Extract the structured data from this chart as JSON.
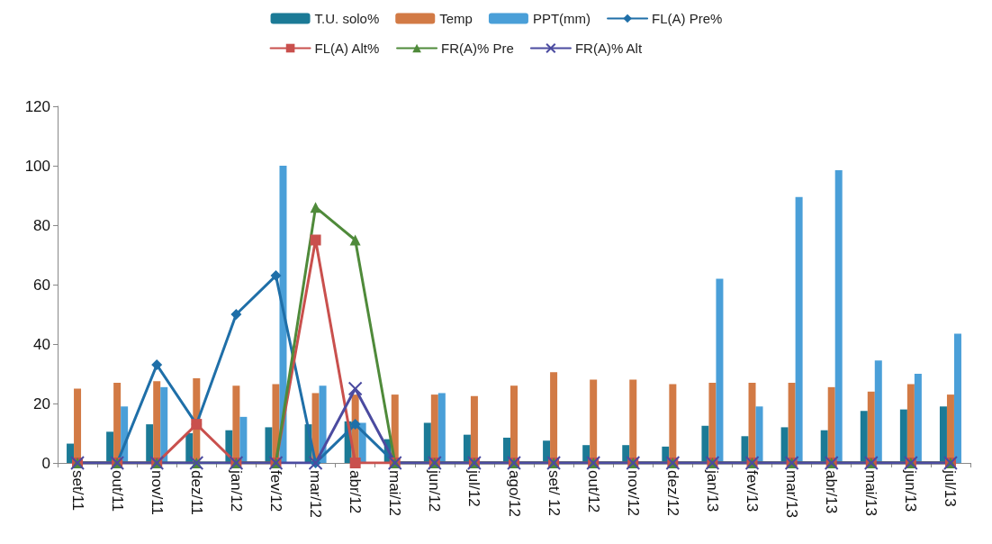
{
  "chart_data": {
    "type": "bar",
    "categories": [
      "set/11",
      "out/11",
      "nov/11",
      "dez/11",
      "jan/12",
      "fev/12",
      "mar/12",
      "abr/12",
      "mai/12",
      "jun/12",
      "jul/12",
      "ago/12",
      "set/ 12",
      "out/12",
      "nov/12",
      "dez/12",
      "jan/13",
      "fev/13",
      "mar/13",
      "abr/13",
      "mai/13",
      "jun/13",
      "jul/13"
    ],
    "ylim": [
      0,
      120
    ],
    "yticks": [
      0,
      20,
      40,
      60,
      80,
      100,
      120
    ],
    "grid": false,
    "legend": "top",
    "series": [
      {
        "name": "T.U. solo%",
        "color": "#1b7a96",
        "values": [
          6.5,
          10.5,
          13,
          10,
          11,
          12,
          13,
          14,
          8,
          13.5,
          9.5,
          8.5,
          7.5,
          6,
          6,
          5.5,
          12.5,
          9,
          12,
          11,
          17.5,
          18,
          19
        ]
      },
      {
        "name": "Temp",
        "color": "#d27a45",
        "values": [
          25,
          27,
          27.5,
          28.5,
          26,
          26.5,
          23.5,
          23,
          23,
          23,
          22.5,
          26,
          30.5,
          28,
          28,
          26.5,
          27,
          27,
          27,
          25.5,
          24,
          26.5,
          23
        ]
      },
      {
        "name": "PPT(mm)",
        "color": "#4a9fd8",
        "values": [
          0,
          19,
          25.5,
          0,
          15.5,
          100,
          26,
          13.5,
          0,
          23.5,
          0,
          0,
          0,
          0,
          0,
          0,
          62,
          19,
          89.5,
          98.5,
          34.5,
          30,
          43.5
        ]
      },
      {
        "name": "FL(A) Pre%",
        "type": "line",
        "marker": "diamond",
        "color": "#1f6fa8",
        "values": [
          0,
          0,
          33,
          13,
          50,
          63,
          0,
          13,
          0,
          0,
          0,
          0,
          0,
          0,
          0,
          0,
          0,
          0,
          0,
          0,
          0,
          0,
          0
        ]
      },
      {
        "name": "FL(A) Alt%",
        "type": "line",
        "marker": "square",
        "color": "#c9504d",
        "values": [
          0,
          0,
          0,
          13,
          0,
          0,
          75,
          0,
          0,
          0,
          0,
          0,
          0,
          0,
          0,
          0,
          0,
          0,
          0,
          0,
          0,
          0,
          0
        ]
      },
      {
        "name": "FR(A)% Pre",
        "type": "line",
        "marker": "triangle",
        "color": "#4f8a3a",
        "values": [
          0,
          0,
          0,
          0,
          0,
          0,
          86,
          75,
          0,
          0,
          0,
          0,
          0,
          0,
          0,
          0,
          0,
          0,
          0,
          0,
          0,
          0,
          0
        ]
      },
      {
        "name": "FR(A)% Alt",
        "type": "line",
        "marker": "cross",
        "color": "#4b4ba0",
        "values": [
          0,
          0,
          0,
          0,
          0,
          0,
          0,
          25,
          0,
          0,
          0,
          0,
          0,
          0,
          0,
          0,
          0,
          0,
          0,
          0,
          0,
          0,
          0
        ]
      }
    ]
  }
}
